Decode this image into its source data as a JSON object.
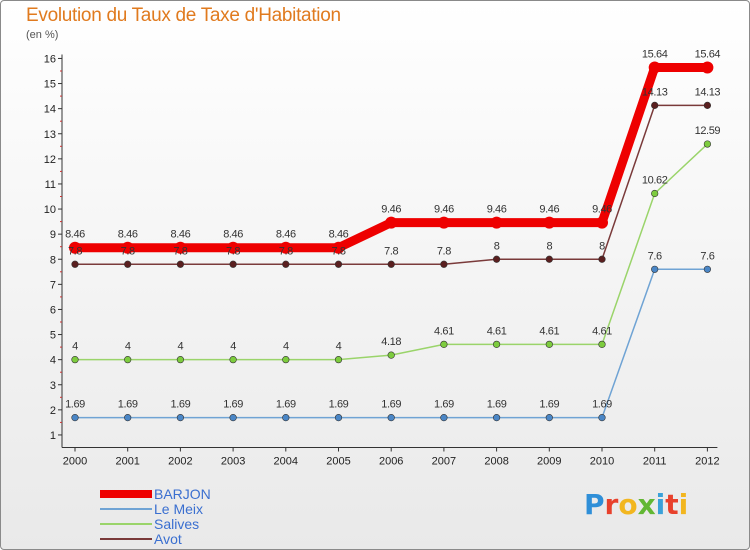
{
  "title": "Evolution du Taux de Taxe d'Habitation",
  "unit": "(en %)",
  "logo": {
    "letters": [
      "P",
      "r",
      "o",
      "x",
      "i",
      "t",
      "i"
    ],
    "colors": [
      "#2f8fd8",
      "#e8412c",
      "#f2b61f",
      "#62b733",
      "#3aa1d9",
      "#e8412c",
      "#f2b61f"
    ]
  },
  "chart_data": {
    "type": "line",
    "title": "Evolution du Taux de Taxe d'Habitation",
    "ylabel": "(en %)",
    "xlabel": "",
    "x": [
      "2000",
      "2001",
      "2002",
      "2003",
      "2004",
      "2005",
      "2006",
      "2007",
      "2008",
      "2009",
      "2010",
      "2011",
      "2012"
    ],
    "ylim": [
      0.5,
      16
    ],
    "yticks": [
      1,
      2,
      3,
      4,
      5,
      6,
      7,
      8,
      9,
      10,
      11,
      12,
      13,
      14,
      15,
      16
    ],
    "grid": false,
    "legend": "bottom-left",
    "series": [
      {
        "name": "BARJON",
        "color": "#ee0000",
        "values": [
          8.46,
          8.46,
          8.46,
          8.46,
          8.46,
          8.46,
          9.46,
          9.46,
          9.46,
          9.46,
          9.46,
          15.64,
          15.64
        ],
        "labels": [
          "8.46",
          "8.46",
          "8.46",
          "8.46",
          "8.46",
          "8.46",
          "9.46",
          "9.46",
          "9.46",
          "9.46",
          "9.46",
          "15.64",
          "15.64"
        ]
      },
      {
        "name": "Le Meix",
        "color": "#6fa3d4",
        "values": [
          1.69,
          1.69,
          1.69,
          1.69,
          1.69,
          1.69,
          1.69,
          1.69,
          1.69,
          1.69,
          1.69,
          7.6,
          7.6
        ],
        "labels": [
          "1.69",
          "1.69",
          "1.69",
          "1.69",
          "1.69",
          "1.69",
          "1.69",
          "1.69",
          "1.69",
          "1.69",
          "1.69",
          "7.6",
          "7.6"
        ]
      },
      {
        "name": "Salives",
        "color": "#9ad46a",
        "values": [
          4,
          4,
          4,
          4,
          4,
          4,
          4.18,
          4.61,
          4.61,
          4.61,
          4.61,
          10.62,
          12.59
        ],
        "labels": [
          "4",
          "4",
          "4",
          "4",
          "4",
          "4",
          "4.18",
          "4.61",
          "4.61",
          "4.61",
          "4.61",
          "10.62",
          "12.59"
        ]
      },
      {
        "name": "Avot",
        "color": "#7a3a3a",
        "values": [
          7.8,
          7.8,
          7.8,
          7.8,
          7.8,
          7.8,
          7.8,
          7.8,
          8,
          8,
          8,
          14.13,
          14.13
        ],
        "labels": [
          "7.8",
          "7.8",
          "7.8",
          "7.8",
          "7.8",
          "7.8",
          "7.8",
          "7.8",
          "8",
          "8",
          "8",
          "14.13",
          "14.13"
        ]
      }
    ]
  }
}
